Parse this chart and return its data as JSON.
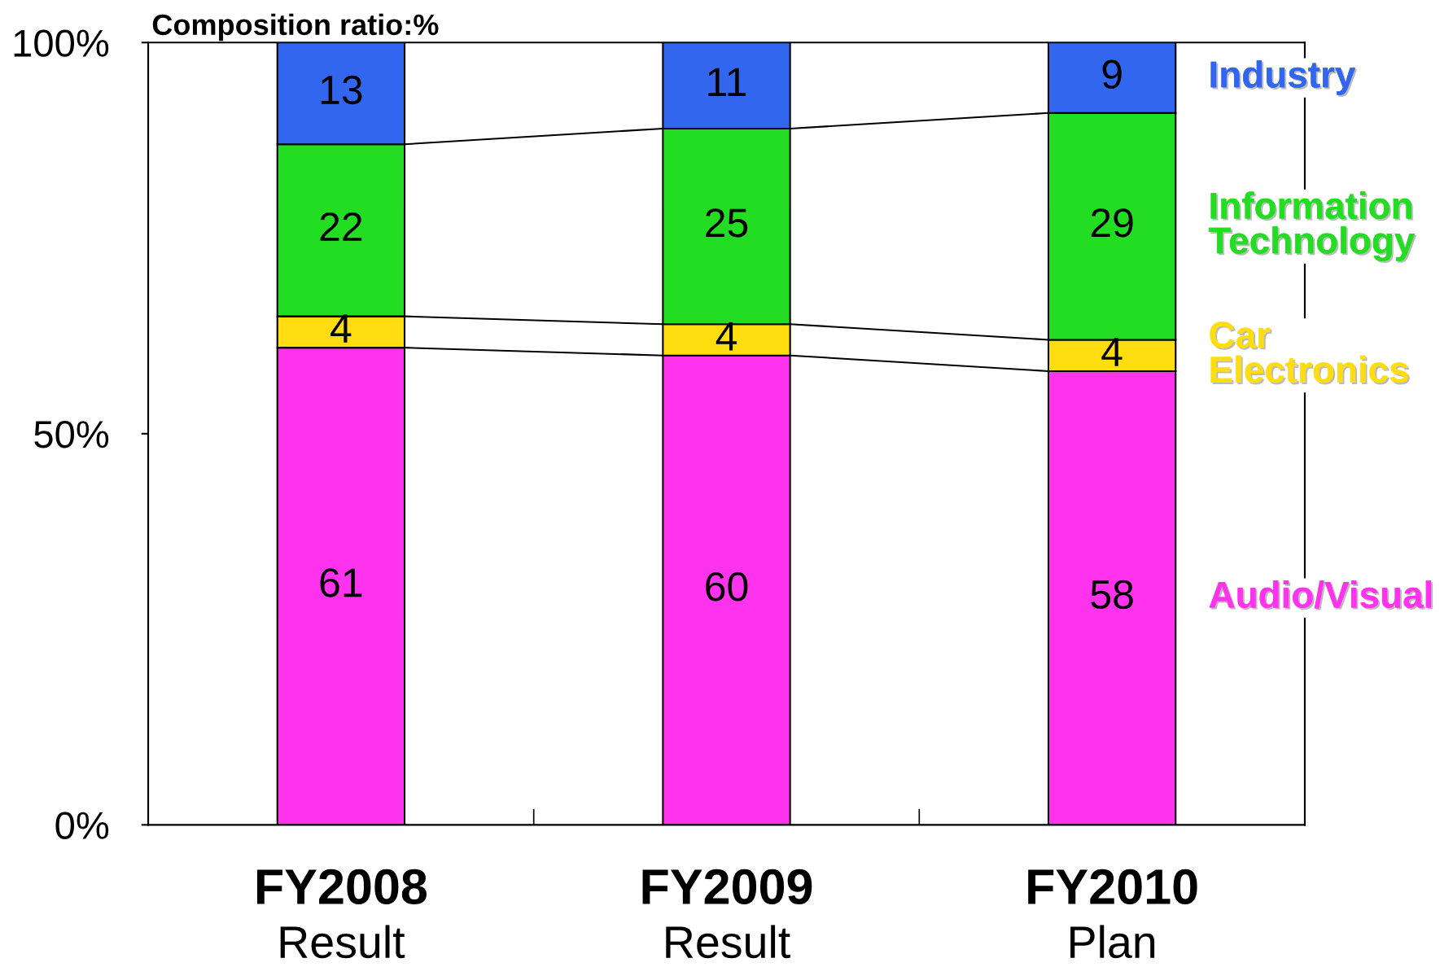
{
  "chart_data": {
    "type": "bar",
    "stacked": true,
    "ylabel": "Composition ratio:%",
    "categories": [
      "FY2008\nResult",
      "FY2009\nResult",
      "FY2010\nPlan"
    ],
    "series": [
      {
        "name": "Audio/Visual",
        "color": "#ff33ee",
        "values": [
          61,
          60,
          58
        ]
      },
      {
        "name": "Car\nElectronics",
        "color": "#ffdd11",
        "values": [
          4,
          4,
          4
        ]
      },
      {
        "name": "Information\nTechnology",
        "color": "#22dd22",
        "values": [
          22,
          25,
          29
        ]
      },
      {
        "name": "Industry",
        "color": "#3366ee",
        "values": [
          13,
          11,
          9
        ]
      }
    ],
    "ylim": [
      0,
      100
    ],
    "yticks": [
      {
        "value": 0,
        "label": "0%"
      },
      {
        "value": 50,
        "label": "50%"
      },
      {
        "value": 100,
        "label": "100%"
      }
    ],
    "data_labels": true,
    "legend": false,
    "grid": false
  }
}
